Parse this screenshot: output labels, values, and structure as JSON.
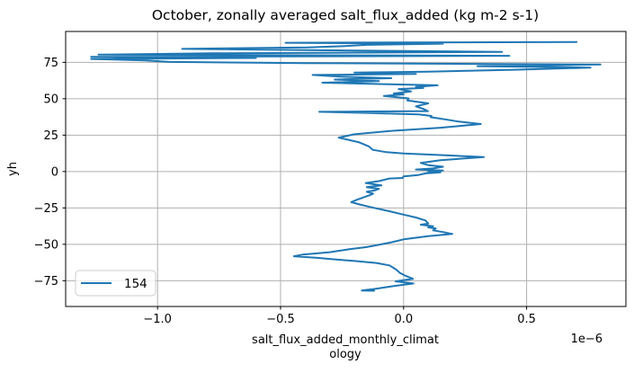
{
  "figure": {
    "background": "#ffffff"
  },
  "chart_data": {
    "type": "line",
    "title": "October, zonally averaged salt_flux_added (kg m-2 s-1)",
    "xlabel_lines": [
      "salt_flux_added_monthly_climat",
      "ology"
    ],
    "xlabel": "salt_flux_added_monthly_climatology",
    "ylabel": "yh",
    "x_offset_label": "1e−6",
    "x_units_scale": "1e-6",
    "grid": true,
    "legend_position": "lower left",
    "xlim": [
      -1.3735,
      0.9035
    ],
    "ylim": [
      -92.7,
      96.2
    ],
    "x_ticks": [
      -1.0,
      -0.5,
      0.0,
      0.5
    ],
    "x_tick_labels": [
      "−1.0",
      "−0.5",
      "0.0",
      "0.5"
    ],
    "y_ticks": [
      75,
      50,
      25,
      0,
      -25,
      -50,
      -75
    ],
    "y_tick_labels": [
      "75",
      "50",
      "25",
      "0",
      "−25",
      "−50",
      "−75"
    ],
    "colors": {
      "line": "#1f77b4",
      "grid": "#b0b0b0",
      "spine": "#000000",
      "legend_edge": "#cccccc"
    },
    "series": [
      {
        "name": "154",
        "color": "#1f77b4",
        "points": [
          [
            -0.12,
            -81.9
          ],
          [
            -0.17,
            -81.7
          ],
          [
            -0.15,
            -81.3
          ],
          [
            -0.124,
            -80.8
          ],
          [
            -0.04,
            -78.6
          ],
          [
            0.04,
            -76.9
          ],
          [
            -0.033,
            -75.4
          ],
          [
            0.038,
            -73.7
          ],
          [
            0.01,
            -71.8
          ],
          [
            -0.015,
            -69.6
          ],
          [
            -0.03,
            -67.4
          ],
          [
            -0.057,
            -64.5
          ],
          [
            -0.11,
            -62.8
          ],
          [
            -0.203,
            -61.4
          ],
          [
            -0.29,
            -60.2
          ],
          [
            -0.35,
            -59.3
          ],
          [
            -0.446,
            -58.2
          ],
          [
            -0.41,
            -57.1
          ],
          [
            -0.3,
            -55.4
          ],
          [
            -0.22,
            -53.4
          ],
          [
            -0.15,
            -51.9
          ],
          [
            -0.106,
            -50.5
          ],
          [
            -0.05,
            -48.6
          ],
          [
            0.0,
            -46.6
          ],
          [
            0.1,
            -44.4
          ],
          [
            0.198,
            -42.9
          ],
          [
            0.16,
            -41.6
          ],
          [
            0.12,
            -40.4
          ],
          [
            0.131,
            -39.2
          ],
          [
            0.1,
            -38.4
          ],
          [
            0.12,
            -37.6
          ],
          [
            0.07,
            -36.5
          ],
          [
            0.1,
            -35.7
          ],
          [
            0.089,
            -33.6
          ],
          [
            0.05,
            -31.6
          ],
          [
            0.0,
            -29.6
          ],
          [
            -0.06,
            -27.2
          ],
          [
            -0.13,
            -24.6
          ],
          [
            -0.18,
            -22.6
          ],
          [
            -0.213,
            -21.0
          ],
          [
            -0.19,
            -19.4
          ],
          [
            -0.16,
            -17.6
          ],
          [
            -0.135,
            -16.1
          ],
          [
            -0.124,
            -15.2
          ],
          [
            -0.15,
            -13.9
          ],
          [
            -0.118,
            -13.0
          ],
          [
            -0.1,
            -11.9
          ],
          [
            -0.15,
            -10.7
          ],
          [
            -0.09,
            -9.5
          ],
          [
            -0.154,
            -7.9
          ],
          [
            -0.1,
            -6.6
          ],
          [
            -0.058,
            -4.8
          ],
          [
            -0.004,
            -4.4
          ],
          [
            0.0,
            -3.3
          ],
          [
            0.06,
            -2.4
          ],
          [
            0.09,
            -1.3
          ],
          [
            0.15,
            -0.6
          ],
          [
            0.1,
            0.0
          ],
          [
            0.16,
            0.7
          ],
          [
            0.05,
            1.4
          ],
          [
            0.12,
            2.1
          ],
          [
            0.16,
            3.3
          ],
          [
            0.1,
            4.4
          ],
          [
            0.07,
            5.9
          ],
          [
            0.15,
            7.8
          ],
          [
            0.326,
            9.9
          ],
          [
            0.15,
            11.3
          ],
          [
            0.0,
            12.4
          ],
          [
            -0.07,
            13.3
          ],
          [
            -0.125,
            14.9
          ],
          [
            -0.14,
            17.1
          ],
          [
            -0.18,
            20.0
          ],
          [
            -0.264,
            23.3
          ],
          [
            -0.2,
            25.6
          ],
          [
            -0.05,
            27.9
          ],
          [
            0.15,
            30.1
          ],
          [
            0.314,
            32.6
          ],
          [
            0.22,
            34.4
          ],
          [
            0.18,
            35.5
          ],
          [
            0.135,
            36.7
          ],
          [
            0.11,
            37.3
          ],
          [
            0.113,
            38.2
          ],
          [
            0.06,
            39.3
          ],
          [
            -0.343,
            41.0
          ],
          [
            0.099,
            41.5
          ],
          [
            0.08,
            43.0
          ],
          [
            0.05,
            44.8
          ],
          [
            0.1,
            46.8
          ],
          [
            0.015,
            48.8
          ],
          [
            0.02,
            50.2
          ],
          [
            -0.08,
            51.9
          ],
          [
            0.0,
            53.0
          ],
          [
            -0.04,
            53.6
          ],
          [
            0.03,
            55.0
          ],
          [
            -0.02,
            56.6
          ],
          [
            0.08,
            57.4
          ],
          [
            0.05,
            58.2
          ],
          [
            0.138,
            59.2
          ],
          [
            -0.08,
            60.0
          ],
          [
            -0.33,
            61.0
          ],
          [
            -0.1,
            62.1
          ],
          [
            -0.28,
            63.2
          ],
          [
            -0.05,
            64.1
          ],
          [
            -0.25,
            65.1
          ],
          [
            -0.37,
            66.3
          ],
          [
            0.05,
            67.0
          ],
          [
            -0.2,
            67.9
          ],
          [
            0.1,
            68.6
          ],
          [
            0.45,
            69.9
          ],
          [
            0.76,
            71.4
          ],
          [
            0.3,
            72.4
          ],
          [
            0.8,
            73.5
          ],
          [
            -0.4,
            74.5
          ],
          [
            -0.95,
            75.3
          ],
          [
            -1.05,
            76.3
          ],
          [
            -1.27,
            77.3
          ],
          [
            -0.6,
            78.0
          ],
          [
            -1.27,
            78.7
          ],
          [
            0.43,
            79.5
          ],
          [
            -1.24,
            80.3
          ],
          [
            -0.78,
            81.2
          ],
          [
            0.4,
            82.2
          ],
          [
            -0.2,
            83.1
          ],
          [
            -0.9,
            84.2
          ],
          [
            -0.39,
            85.2
          ],
          [
            -0.25,
            86.1
          ],
          [
            -0.15,
            87.0
          ],
          [
            0.16,
            87.8
          ],
          [
            -0.48,
            88.4
          ],
          [
            0.703,
            89.0
          ]
        ]
      }
    ]
  },
  "legend": {
    "entries": [
      {
        "label": "154",
        "color": "#1f77b4"
      }
    ]
  }
}
